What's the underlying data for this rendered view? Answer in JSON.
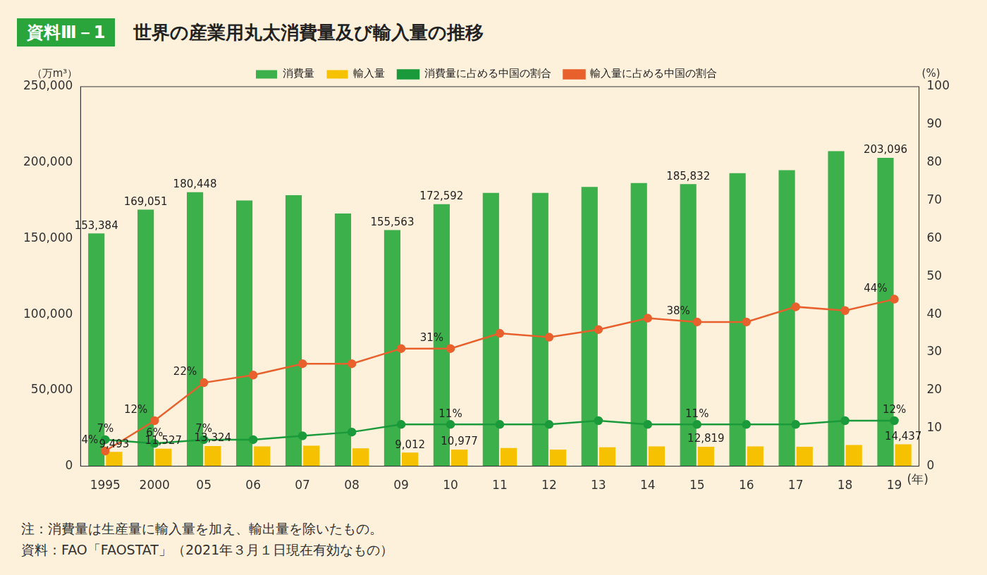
{
  "chart_data": {
    "type": "bar",
    "badge": "資料Ⅲ－1",
    "title": "世界の産業用丸太消費量及び輸入量の推移",
    "y_label": "（万m³）",
    "y2_label": "(%)",
    "x_label": "(年)",
    "notes": [
      "注：消費量は生産量に輸入量を加え、輸出量を除いたもの。",
      "資料：FAO「FAOSTAT」（2021年３月１日現在有効なもの）"
    ],
    "categories": [
      "1995",
      "2000",
      "05",
      "06",
      "07",
      "08",
      "09",
      "10",
      "11",
      "12",
      "13",
      "14",
      "15",
      "16",
      "17",
      "18",
      "19"
    ],
    "series": [
      {
        "name": "消費量",
        "type": "bar",
        "color": "#3cb04a",
        "values": [
          153384,
          169051,
          180448,
          175000,
          178500,
          166500,
          155563,
          172592,
          180000,
          180000,
          184000,
          186500,
          185832,
          193000,
          195000,
          207500,
          203096
        ],
        "value_labels": [
          "153,384",
          "169,051",
          "180,448",
          null,
          null,
          null,
          "155,563",
          "172,592",
          null,
          null,
          null,
          null,
          "185,832",
          null,
          null,
          null,
          "203,096"
        ]
      },
      {
        "name": "輸入量",
        "type": "bar",
        "color": "#f5c100",
        "values": [
          9493,
          11527,
          13324,
          13000,
          13500,
          11800,
          9012,
          10977,
          12000,
          11000,
          12500,
          13000,
          12819,
          13000,
          12800,
          14000,
          14437
        ],
        "value_labels": [
          "9,493",
          "11,527",
          "13,324",
          null,
          null,
          null,
          "9,012",
          "10,977",
          null,
          null,
          null,
          null,
          "12,819",
          null,
          null,
          null,
          "14,437"
        ]
      },
      {
        "name": "消費量に占める中国の割合",
        "type": "line",
        "axis": "y2",
        "color": "#1a9a3a",
        "marker": "circle",
        "line_style": "solid",
        "values": [
          7,
          6,
          7,
          7,
          8,
          9,
          11,
          11,
          11,
          11,
          12,
          11,
          11,
          11,
          11,
          12,
          12
        ],
        "value_labels": [
          "7%",
          "6%",
          "7%",
          null,
          null,
          null,
          null,
          "11%",
          null,
          null,
          null,
          null,
          "11%",
          null,
          null,
          null,
          "12%"
        ]
      },
      {
        "name": "輸入量に占める中国の割合",
        "type": "line",
        "axis": "y2",
        "color": "#e8602c",
        "marker": "circle",
        "line_style": "solid",
        "values": [
          4,
          12,
          22,
          24,
          27,
          27,
          31,
          31,
          35,
          34,
          36,
          39,
          38,
          38,
          42,
          41,
          44
        ],
        "value_labels": [
          "4%",
          "12%",
          "22%",
          null,
          null,
          null,
          null,
          "31%",
          null,
          null,
          null,
          null,
          "38%",
          null,
          null,
          null,
          "44%"
        ]
      }
    ],
    "ylim": [
      0,
      250000
    ],
    "yticks": [
      0,
      {
        "value": 50000,
        "label": "50,000"
      },
      {
        "value": 100000,
        "label": "100,000"
      },
      {
        "value": 150000,
        "label": "150,000"
      },
      {
        "value": 200000,
        "label": "200,000"
      },
      {
        "value": 250000,
        "label": "250,000"
      }
    ],
    "y2lim": [
      0,
      100
    ],
    "y2ticks": [
      0,
      10,
      20,
      30,
      40,
      50,
      60,
      70,
      80,
      90,
      100
    ],
    "grid": false,
    "legend": "top",
    "data_labels": true
  }
}
